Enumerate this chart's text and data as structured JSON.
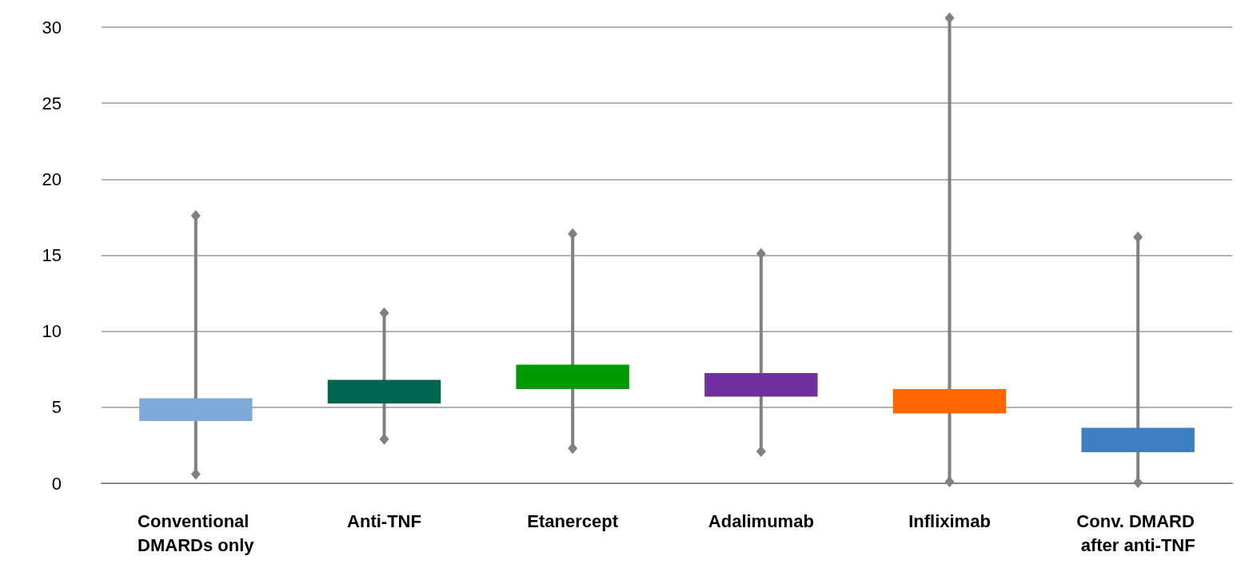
{
  "chart_data": {
    "type": "bar",
    "categories": [
      "Conventional DMARDs only",
      "Anti-TNF",
      "Etanercept",
      "Adalimumab",
      "Infliximab",
      "Conv. DMARD after anti-TNF"
    ],
    "base": [
      4.1,
      5.25,
      6.2,
      5.7,
      4.6,
      2.05
    ],
    "values": [
      1.5,
      1.55,
      1.6,
      1.55,
      1.6,
      1.6
    ],
    "colors": [
      "#7fa9d9",
      "#006650",
      "#009900",
      "#7030a0",
      "#ff6600",
      "#3d7fc1"
    ],
    "errors": [
      [
        0.6,
        17.6
      ],
      [
        2.9,
        11.2
      ],
      [
        2.3,
        16.4
      ],
      [
        2.1,
        15.1
      ],
      [
        0.1,
        30.6
      ],
      [
        0.05,
        16.2
      ]
    ],
    "ylim": [
      0,
      30
    ],
    "yticks": [
      0,
      5,
      10,
      15,
      20,
      25,
      30
    ],
    "grid": "y",
    "marker": "diamond"
  }
}
